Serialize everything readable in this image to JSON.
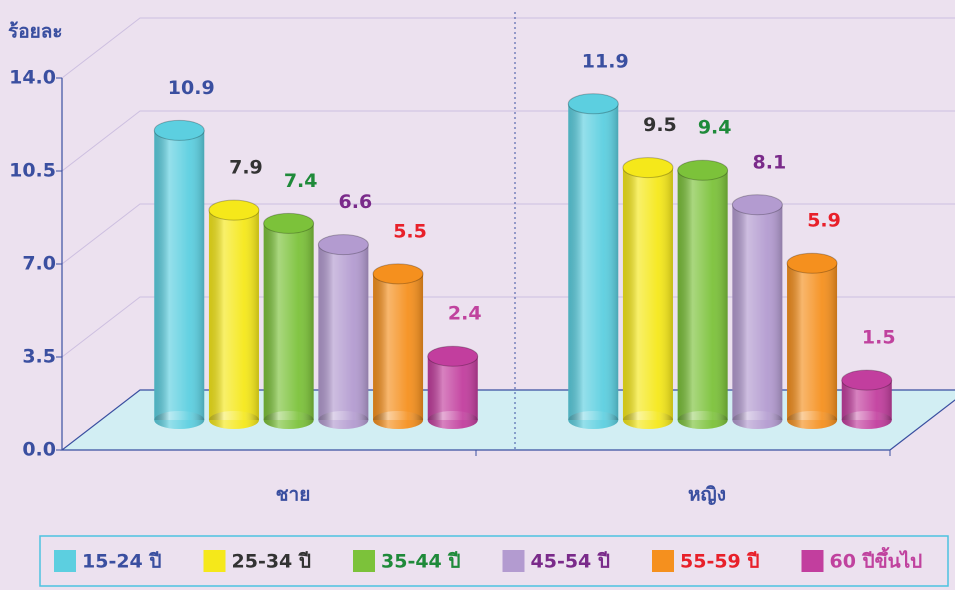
{
  "chart_data": {
    "type": "bar3d",
    "y_axis_label": "ร้อยละ",
    "categories": [
      "ชาย",
      "หญิง"
    ],
    "ylim": [
      0,
      14
    ],
    "yticks": [
      {
        "value": 0,
        "label": "0.0"
      },
      3.5,
      {
        "value": 7,
        "label": "7.0"
      },
      10.5,
      {
        "value": 14,
        "label": "14.0"
      }
    ],
    "grid": true,
    "legend": "bottom",
    "series": [
      {
        "name": "15-24 ปี",
        "color": "#5ccfe0",
        "label_color": "#3a4fa0",
        "values": [
          10.9,
          11.9
        ]
      },
      {
        "name": "25-34 ปี",
        "color": "#f5e81a",
        "label_color": "#333333",
        "values": [
          7.9,
          9.5
        ]
      },
      {
        "name": "35-44 ปี",
        "color": "#7cc23a",
        "label_color": "#1f8a3a",
        "values": [
          7.4,
          9.4
        ]
      },
      {
        "name": "45-54 ปี",
        "color": "#b39bd0",
        "label_color": "#7a2a8a",
        "values": [
          6.6,
          8.1
        ]
      },
      {
        "name": "55-59 ปี",
        "color": "#f5901e",
        "label_color": "#e8202a",
        "values": [
          5.5,
          5.9
        ]
      },
      {
        "name": "60 ปีขึ้นไป",
        "color": "#c23e9e",
        "label_color": "#c0429e",
        "values": [
          2.4,
          1.5
        ]
      }
    ]
  }
}
